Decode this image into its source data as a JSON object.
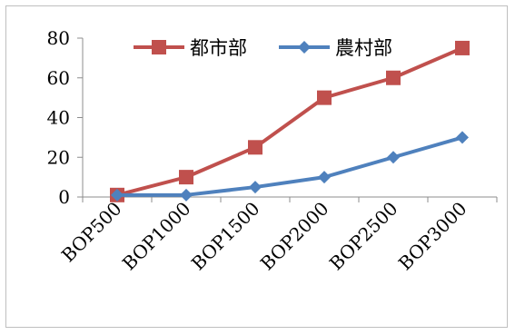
{
  "chart_data": {
    "type": "line",
    "title": "",
    "xlabel": "",
    "ylabel": "",
    "categories": [
      "BOP500",
      "BOP1000",
      "BOP1500",
      "BOP2000",
      "BOP2500",
      "BOP3000"
    ],
    "ylim": [
      0,
      80
    ],
    "yticks": [
      0,
      20,
      40,
      60,
      80
    ],
    "grid": false,
    "legend": "top",
    "series": [
      {
        "name": "都市部",
        "values": [
          1,
          10,
          25,
          50,
          60,
          75
        ],
        "color": "#c0504d",
        "marker": "square"
      },
      {
        "name": "農村部",
        "values": [
          1,
          1,
          5,
          10,
          20,
          30
        ],
        "color": "#4f81bd",
        "marker": "diamond"
      }
    ]
  }
}
